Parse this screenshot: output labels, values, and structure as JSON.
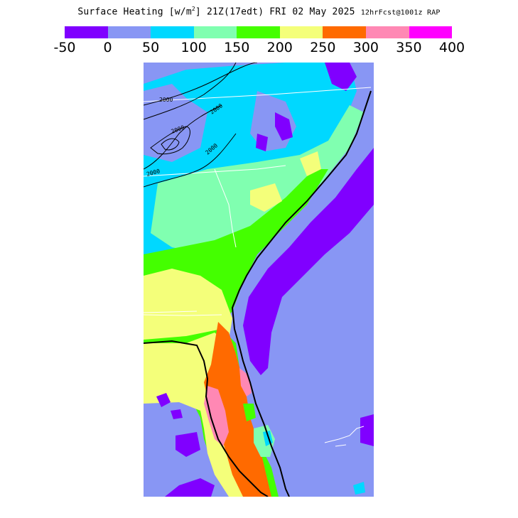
{
  "title": {
    "main": "Surface Heating [w/m",
    "sup": "2",
    "mid": "] 21Z(17edt) FRI 02 May 2025",
    "small": "12hrFcst@1001z RAP"
  },
  "legend": {
    "colors": [
      "#8000ff",
      "#8896f4",
      "#00d8ff",
      "#80ffb0",
      "#44ff00",
      "#f4ff7a",
      "#ff6a00",
      "#ff88b4",
      "#ff00ff"
    ],
    "ticks": [
      "-50",
      "0",
      "50",
      "100",
      "150",
      "200",
      "250",
      "300",
      "350",
      "400"
    ]
  },
  "map": {
    "region": "Southeast United States",
    "contour_labels": [
      "2000",
      "2000",
      "2000",
      "2000",
      "2000"
    ]
  }
}
